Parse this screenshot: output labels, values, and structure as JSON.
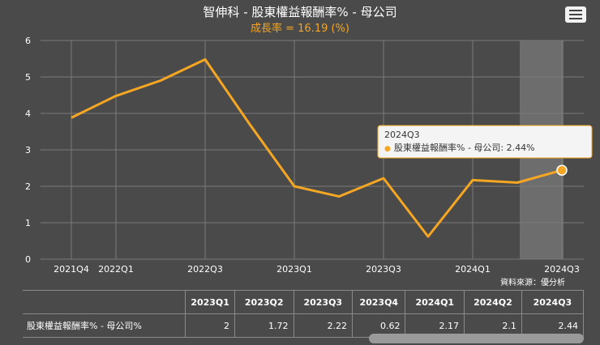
{
  "header": {
    "title": "智伸科 - 股東權益報酬率% - 母公司",
    "subtitle": "成長率 = 16.19 (%)",
    "menu_icon": "hamburger-menu-icon"
  },
  "source_note": "資料來源：優分析",
  "tooltip": {
    "period": "2024Q3",
    "text": "股東權益報酬率% - 母公司: 2.44%",
    "bullet": "●"
  },
  "colors": {
    "background": "#4a4a4a",
    "line": "#f5a623",
    "grid": "#7a7a7a",
    "highlight": "#8a8a8a"
  },
  "chart_data": {
    "type": "line",
    "title": "智伸科 - 股東權益報酬率% - 母公司",
    "subtitle": "成長率 = 16.19 (%)",
    "x": [
      "2021Q4",
      "2022Q1",
      "2022Q2",
      "2022Q3",
      "2022Q4",
      "2023Q1",
      "2023Q2",
      "2023Q3",
      "2023Q4",
      "2024Q1",
      "2024Q2",
      "2024Q3"
    ],
    "x_tick_labels": [
      "2021Q4",
      "2022Q1",
      "",
      "2022Q3",
      "",
      "2023Q1",
      "",
      "2023Q3",
      "",
      "2024Q1",
      "",
      "2024Q3"
    ],
    "series": [
      {
        "name": "股東權益報酬率% - 母公司",
        "values": [
          3.88,
          4.48,
          4.9,
          5.48,
          3.7,
          2.0,
          1.72,
          2.22,
          0.62,
          2.17,
          2.1,
          2.44
        ]
      }
    ],
    "ylim": [
      0,
      6
    ],
    "yticks": [
      0,
      1,
      2,
      3,
      4,
      5,
      6
    ],
    "grid": true,
    "highlighted_point": "2024Q3"
  },
  "table": {
    "headers": [
      "2023Q1",
      "2023Q2",
      "2023Q3",
      "2023Q4",
      "2024Q1",
      "2024Q2",
      "2024Q3"
    ],
    "rows": [
      {
        "label": "股東權益報酬率% - 母公司%",
        "values": [
          "2",
          "1.72",
          "2.22",
          "0.62",
          "2.17",
          "2.1",
          "2.44"
        ]
      }
    ]
  }
}
